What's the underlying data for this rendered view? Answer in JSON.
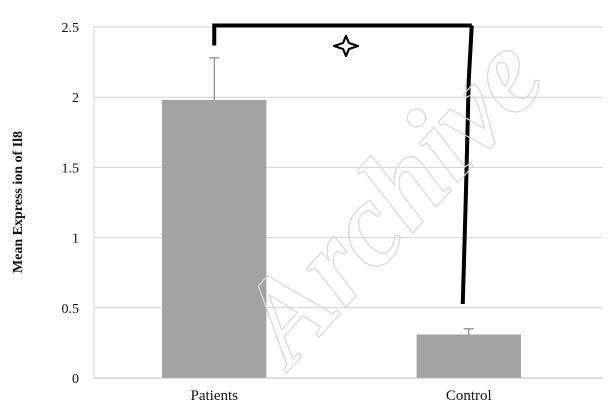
{
  "chart_data": {
    "type": "bar",
    "categories": [
      "Patients",
      "Control"
    ],
    "values": [
      1.98,
      0.31
    ],
    "error": [
      0.3,
      0.04
    ],
    "ylabel": "Mean Express ion of Il8",
    "ylim": [
      0,
      2.5
    ],
    "yticks": [
      0,
      0.5,
      1,
      1.5,
      2,
      2.5
    ],
    "ytick_labels": [
      "0",
      "0.5",
      "1",
      "1.5",
      "2",
      "2.5"
    ],
    "grid": true,
    "bar_color": "#a3a3a3",
    "significance_marker": "star-icon",
    "watermark": "Archive"
  }
}
